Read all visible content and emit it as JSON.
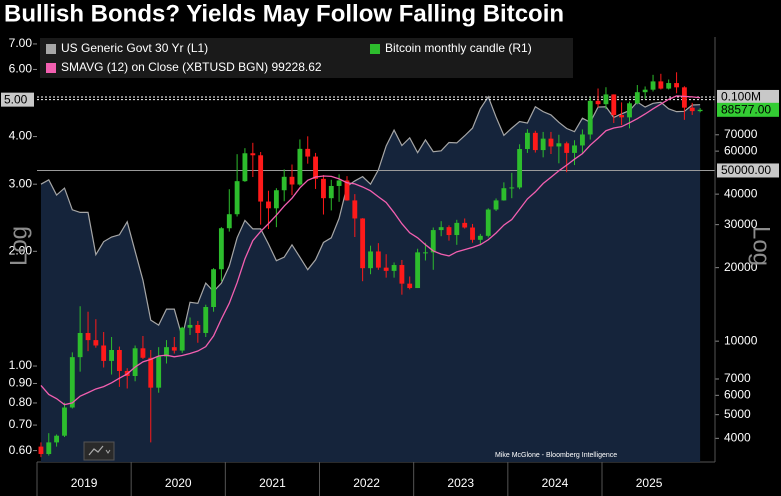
{
  "chart_data": {
    "type": "candlestick",
    "title": "Bullish Bonds? Yields May Follow Falling Bitcoin",
    "credit": "Mike McGlone - Bloomberg Intelligence",
    "y_label": "Log",
    "y2_label": "Log",
    "log_scale": true,
    "x": [
      2019.042,
      2019.125,
      2019.208,
      2019.292,
      2019.375,
      2019.458,
      2019.542,
      2019.625,
      2019.708,
      2019.792,
      2019.875,
      2019.958,
      2020.042,
      2020.125,
      2020.208,
      2020.292,
      2020.375,
      2020.458,
      2020.542,
      2020.625,
      2020.708,
      2020.792,
      2020.875,
      2020.958,
      2021.042,
      2021.125,
      2021.208,
      2021.292,
      2021.375,
      2021.458,
      2021.542,
      2021.625,
      2021.708,
      2021.792,
      2021.875,
      2021.958,
      2022.042,
      2022.125,
      2022.208,
      2022.292,
      2022.375,
      2022.458,
      2022.542,
      2022.625,
      2022.708,
      2022.792,
      2022.875,
      2022.958,
      2023.042,
      2023.125,
      2023.208,
      2023.292,
      2023.375,
      2023.458,
      2023.542,
      2023.625,
      2023.708,
      2023.792,
      2023.875,
      2023.958,
      2024.042,
      2024.125,
      2024.208,
      2024.292,
      2024.375,
      2024.458,
      2024.542,
      2024.625,
      2024.708,
      2024.792,
      2024.875,
      2024.958,
      2025.042,
      2025.125,
      2025.208,
      2025.292,
      2025.375,
      2025.458,
      2025.542,
      2025.625,
      2025.708,
      2025.792,
      2025.875,
      2025.958,
      2026.042
    ],
    "xlim": [
      2019,
      2026.2
    ],
    "xticks": [
      2019,
      2020,
      2021,
      2022,
      2023,
      2024,
      2025
    ],
    "ylim": [
      0.56,
      7.3
    ],
    "yticks": [
      {
        "value": 0.6,
        "label": "0.60"
      },
      {
        "value": 0.7,
        "label": "0.70"
      },
      {
        "value": 0.8,
        "label": "0.80"
      },
      {
        "value": 0.9,
        "label": "0.90"
      },
      {
        "value": 1,
        "label": "1.00"
      },
      {
        "value": 2,
        "label": "2.00"
      },
      {
        "value": 3,
        "label": "3.00"
      },
      {
        "value": 4,
        "label": "4.00"
      },
      {
        "value": 6,
        "label": "6.00"
      },
      {
        "value": 7,
        "label": "7.00"
      }
    ],
    "y2lim": [
      3200,
      176000
    ],
    "y2ticks": [
      4000,
      5000,
      6000,
      7000,
      10000,
      20000,
      30000,
      40000,
      60000,
      70000
    ],
    "reference_lines": [
      {
        "axis": "y",
        "value": 5,
        "label": "5.00",
        "color": "#ffffff",
        "style": "dotted"
      },
      {
        "axis": "y2",
        "value": 100000,
        "label": "0.100M",
        "color": "#ffffff",
        "style": "dotted"
      },
      {
        "axis": "y2",
        "value": 50000,
        "label": "50000.00",
        "color": "#9a9a9a",
        "style": "solid"
      }
    ],
    "last_price": {
      "value": 88577,
      "label": "88577.00",
      "color": "#33cc33"
    },
    "series": [
      {
        "name": "US Generic Govt 30 Yr  (L1)",
        "type": "area",
        "axis": "y",
        "color": "#a6a6a6",
        "fill": "#15243b",
        "values": [
          3.0,
          3.08,
          2.81,
          2.93,
          2.57,
          2.53,
          2.53,
          1.96,
          2.12,
          2.18,
          2.21,
          2.39,
          2.0,
          1.68,
          1.32,
          1.28,
          1.41,
          1.41,
          1.19,
          1.47,
          1.46,
          1.65,
          1.57,
          1.65,
          1.83,
          2.17,
          2.41,
          2.29,
          2.29,
          2.09,
          1.89,
          1.93,
          2.08,
          1.93,
          1.79,
          1.9,
          2.11,
          2.17,
          2.44,
          2.96,
          3.06,
          3.14,
          3.0,
          3.27,
          3.78,
          4.16,
          3.79,
          3.97,
          3.63,
          3.92,
          3.65,
          3.67,
          3.86,
          3.85,
          4.02,
          4.21,
          4.73,
          5.09,
          4.5,
          4.03,
          4.21,
          4.38,
          4.34,
          4.79,
          4.65,
          4.56,
          4.36,
          4.2,
          4.12,
          4.47,
          4.36,
          4.78,
          4.79,
          4.49,
          4.59,
          4.68,
          4.93,
          4.78,
          4.89,
          4.92,
          4.73,
          4.65,
          4.66,
          4.84,
          4.85
        ]
      },
      {
        "name": "SMAVG (12)  on Close (XBTUSD BGN) 99228.62",
        "type": "line",
        "axis": "y2",
        "color": "#f25fb0",
        "values": [
          6588,
          6050,
          5817,
          5496,
          5588,
          5954,
          6154,
          6371,
          6513,
          6754,
          7050,
          7342,
          7833,
          8225,
          8421,
          8696,
          8767,
          8629,
          8733,
          8904,
          9113,
          9496,
          10508,
          12325,
          14304,
          17358,
          21721,
          25808,
          28129,
          30283,
          32796,
          35750,
          38500,
          42458,
          45567,
          47000,
          47450,
          47283,
          46175,
          44508,
          44050,
          42792,
          41275,
          39017,
          36983,
          33583,
          30267,
          27792,
          26508,
          24833,
          23417,
          22717,
          22333,
          23217,
          23708,
          24208,
          24842,
          26017,
          27725,
          29875,
          31500,
          34675,
          38242,
          40850,
          44208,
          46892,
          49842,
          52592,
          55617,
          58583,
          63475,
          67733,
          72717,
          74642,
          75575,
          78375,
          81467,
          85167,
          89433,
          93533,
          97758,
          101033,
          100533,
          100042,
          99228.62
        ]
      },
      {
        "name": "Bitcoin monthly candle (R1)",
        "type": "candlestick",
        "axis": "y2",
        "color": "#2dbd2d",
        "color_down": "#ff1a1a",
        "open": [
          3700,
          3450,
          3850,
          4100,
          5350,
          8600,
          10800,
          10100,
          9600,
          8300,
          9200,
          7550,
          7200,
          9350,
          8550,
          6450,
          8650,
          9450,
          9150,
          11350,
          11650,
          10800,
          13800,
          19700,
          29000,
          33100,
          45200,
          58800,
          57700,
          37300,
          35000,
          41500,
          47100,
          43800,
          61300,
          57000,
          46200,
          38500,
          43200,
          45500,
          37700,
          31800,
          19900,
          23300,
          20000,
          19400,
          20500,
          17200,
          16500,
          23100,
          23100,
          28500,
          29300,
          27200,
          30500,
          29200,
          26000,
          27000,
          34600,
          37700,
          42300,
          42600,
          61200,
          71300,
          60600,
          67500,
          62700,
          64600,
          59000,
          63300,
          70200,
          96400,
          93400,
          102400,
          84300,
          82500,
          94200,
          104600,
          107100,
          115800,
          108200,
          114000,
          109500,
          90400,
          87500
        ],
        "high": [
          3850,
          4200,
          4150,
          5600,
          9000,
          13900,
          13200,
          12300,
          10900,
          10400,
          9500,
          7750,
          9600,
          10500,
          9200,
          9450,
          10100,
          10400,
          11450,
          12500,
          12100,
          14100,
          19900,
          29300,
          41900,
          58300,
          61700,
          64900,
          59500,
          41300,
          42300,
          50500,
          52900,
          67000,
          69000,
          59000,
          47900,
          45800,
          48200,
          47400,
          40000,
          31900,
          24600,
          25200,
          22700,
          21000,
          21500,
          18400,
          23900,
          25300,
          29200,
          31000,
          29800,
          31400,
          31800,
          30200,
          27500,
          35000,
          38400,
          44700,
          48900,
          64000,
          73800,
          72700,
          71900,
          71900,
          70000,
          65600,
          66500,
          73600,
          99600,
          108300,
          109600,
          102500,
          95000,
          95800,
          111900,
          110400,
          123200,
          124400,
          117900,
          126200,
          110600,
          94600,
          90000
        ],
        "low": [
          3350,
          3400,
          3700,
          4050,
          5300,
          7500,
          9100,
          9400,
          7800,
          7300,
          6500,
          6400,
          6850,
          8450,
          3850,
          6150,
          8100,
          8900,
          8950,
          10600,
          9850,
          10400,
          13200,
          17600,
          28100,
          32400,
          44900,
          47000,
          30000,
          28800,
          29300,
          37400,
          39600,
          43300,
          53300,
          42000,
          33000,
          34300,
          37200,
          37600,
          26700,
          17600,
          18800,
          19600,
          18200,
          18200,
          15500,
          16300,
          16500,
          21400,
          19600,
          26900,
          25800,
          24800,
          28900,
          25300,
          24900,
          26600,
          34100,
          37600,
          38500,
          41900,
          59000,
          59200,
          56600,
          58400,
          53500,
          49200,
          52600,
          58900,
          66900,
          90500,
          89200,
          78200,
          76600,
          74400,
          93300,
          98200,
          105300,
          107300,
          107300,
          103500,
          80600,
          84400,
          86500
        ],
        "close": [
          3450,
          3850,
          4100,
          5350,
          8600,
          10800,
          10100,
          9600,
          8300,
          9200,
          7550,
          7200,
          9350,
          8550,
          6450,
          8650,
          9450,
          9150,
          11350,
          11650,
          10800,
          13800,
          19700,
          29000,
          33100,
          45200,
          58800,
          57700,
          37300,
          35000,
          41500,
          47100,
          43800,
          61300,
          57000,
          46200,
          38500,
          43200,
          45500,
          37700,
          31800,
          19900,
          23300,
          20000,
          19400,
          20500,
          17200,
          16500,
          23100,
          23100,
          28500,
          29300,
          27200,
          30500,
          29200,
          26000,
          27000,
          34600,
          37700,
          42300,
          42600,
          61200,
          71300,
          60600,
          67500,
          62700,
          64600,
          59000,
          63300,
          70200,
          96400,
          93400,
          102400,
          84300,
          82500,
          94200,
          104600,
          107100,
          115800,
          108200,
          114000,
          109500,
          90400,
          87500,
          88577
        ]
      }
    ]
  }
}
